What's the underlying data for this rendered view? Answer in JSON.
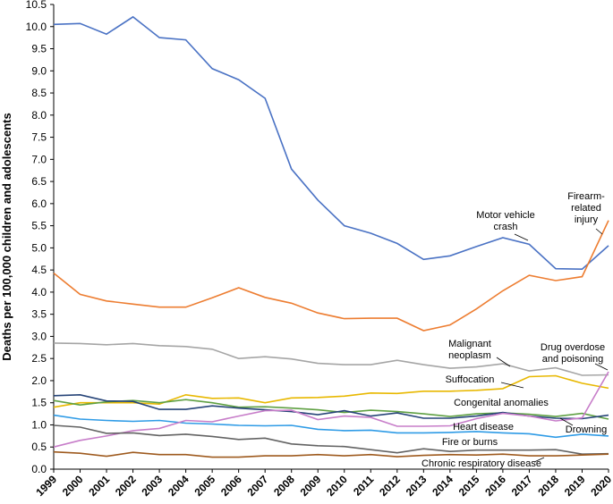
{
  "chart_data": {
    "type": "line",
    "y_label": "Deaths per 100,000 children and adolescents",
    "categories": [
      "1999",
      "2000",
      "2001",
      "2002",
      "2003",
      "2004",
      "2005",
      "2006",
      "2007",
      "2008",
      "2009",
      "2010",
      "2011",
      "2012",
      "2013",
      "2014",
      "2015",
      "2016",
      "2017",
      "2018",
      "2019",
      "2020"
    ],
    "ylim": [
      0,
      10.5
    ],
    "yticks": [
      {
        "value": 0,
        "label": "0.0"
      },
      {
        "value": 0.5,
        "label": "0.5"
      },
      {
        "value": 1,
        "label": "1.0"
      },
      {
        "value": 1.5,
        "label": "1.5"
      },
      {
        "value": 2,
        "label": "2.0"
      },
      {
        "value": 2.5,
        "label": "2.5"
      },
      {
        "value": 3,
        "label": "3.0"
      },
      {
        "value": 3.5,
        "label": "3.5"
      },
      {
        "value": 4,
        "label": "4.0"
      },
      {
        "value": 4.5,
        "label": "4.5"
      },
      {
        "value": 5,
        "label": "5.0"
      },
      {
        "value": 5.5,
        "label": "5.5"
      },
      {
        "value": 6,
        "label": "6.0"
      },
      {
        "value": 6.5,
        "label": "6.5"
      },
      {
        "value": 7,
        "label": "7.0"
      },
      {
        "value": 7.5,
        "label": "7.5"
      },
      {
        "value": 8,
        "label": "8.0"
      },
      {
        "value": 8.5,
        "label": "8.5"
      },
      {
        "value": 9,
        "label": "9.0"
      },
      {
        "value": 9.5,
        "label": "9.5"
      },
      {
        "value": 10,
        "label": "10.0"
      },
      {
        "value": 10.5,
        "label": "10.5"
      }
    ],
    "series": [
      {
        "name": "Motor vehicle\ncrash",
        "color": "#4a72c4",
        "values": [
          10.05,
          10.07,
          9.83,
          10.22,
          9.75,
          9.7,
          9.05,
          8.8,
          8.38,
          6.78,
          6.08,
          5.5,
          5.33,
          5.1,
          4.74,
          4.82,
          5.03,
          5.23,
          5.08,
          4.53,
          4.52,
          5.05
        ]
      },
      {
        "name": "Firearm-\nrelated\ninjury",
        "color": "#ed7d31",
        "values": [
          4.43,
          3.95,
          3.8,
          3.73,
          3.66,
          3.66,
          3.87,
          4.1,
          3.88,
          3.75,
          3.53,
          3.4,
          3.41,
          3.41,
          3.13,
          3.26,
          3.62,
          4.03,
          4.38,
          4.26,
          4.35,
          5.62
        ]
      },
      {
        "name": "Malignant\nneoplasm",
        "color": "#a5a5a5",
        "values": [
          2.85,
          2.84,
          2.81,
          2.84,
          2.79,
          2.77,
          2.71,
          2.5,
          2.54,
          2.49,
          2.39,
          2.36,
          2.36,
          2.46,
          2.36,
          2.28,
          2.31,
          2.38,
          2.22,
          2.29,
          2.12,
          2.13
        ]
      },
      {
        "name": "Suffocation",
        "color": "#e8b800",
        "values": [
          1.4,
          1.5,
          1.5,
          1.5,
          1.47,
          1.68,
          1.6,
          1.61,
          1.5,
          1.61,
          1.62,
          1.65,
          1.72,
          1.71,
          1.76,
          1.76,
          1.78,
          1.82,
          2.09,
          2.11,
          1.94,
          1.83
        ]
      },
      {
        "name": "Congenital anomalies",
        "color": "#5fa043",
        "values": [
          1.55,
          1.45,
          1.52,
          1.55,
          1.5,
          1.57,
          1.5,
          1.4,
          1.41,
          1.38,
          1.34,
          1.28,
          1.33,
          1.3,
          1.25,
          1.19,
          1.25,
          1.27,
          1.24,
          1.19,
          1.26,
          1.13
        ]
      },
      {
        "name": "Drowning",
        "color": "#264478",
        "values": [
          1.66,
          1.68,
          1.54,
          1.53,
          1.35,
          1.35,
          1.43,
          1.38,
          1.34,
          1.3,
          1.23,
          1.32,
          1.2,
          1.27,
          1.15,
          1.15,
          1.2,
          1.28,
          1.2,
          1.15,
          1.14,
          1.22
        ]
      },
      {
        "name": "Heart disease",
        "color": "#2e9be6",
        "values": [
          1.22,
          1.13,
          1.1,
          1.08,
          1.1,
          1.04,
          1.02,
          0.99,
          0.98,
          0.99,
          0.9,
          0.87,
          0.88,
          0.82,
          0.82,
          0.83,
          0.85,
          0.82,
          0.8,
          0.72,
          0.79,
          0.75
        ]
      },
      {
        "name": "Drug overdose\nand poisoning",
        "color": "#c77dc9",
        "values": [
          0.5,
          0.65,
          0.75,
          0.87,
          0.92,
          1.1,
          1.07,
          1.2,
          1.32,
          1.33,
          1.12,
          1.2,
          1.17,
          0.97,
          0.97,
          0.98,
          1.14,
          1.26,
          1.2,
          1.09,
          1.16,
          2.2
        ]
      },
      {
        "name": "Fire or burns",
        "color": "#636363",
        "values": [
          0.99,
          0.95,
          0.81,
          0.82,
          0.76,
          0.79,
          0.74,
          0.67,
          0.7,
          0.57,
          0.53,
          0.51,
          0.44,
          0.37,
          0.46,
          0.4,
          0.43,
          0.43,
          0.43,
          0.44,
          0.34,
          0.35
        ]
      },
      {
        "name": "Chronic respiratory disease",
        "color": "#9e5a1e",
        "values": [
          0.39,
          0.36,
          0.29,
          0.38,
          0.33,
          0.33,
          0.27,
          0.27,
          0.3,
          0.3,
          0.33,
          0.3,
          0.33,
          0.28,
          0.31,
          0.33,
          0.32,
          0.34,
          0.3,
          0.3,
          0.32,
          0.34
        ]
      }
    ]
  }
}
